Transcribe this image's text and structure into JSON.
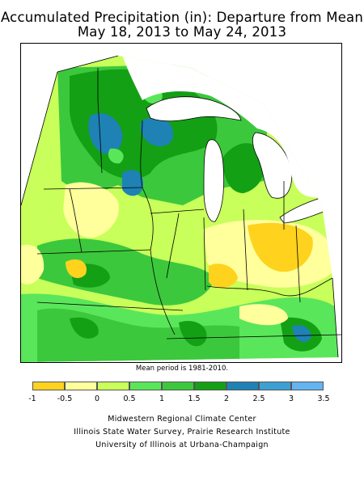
{
  "title": {
    "line1": "Accumulated Precipitation (in): Departure from Mean",
    "line2": "May 18, 2013 to May 24, 2013"
  },
  "note": "Mean period is 1981-2010.",
  "legend": {
    "bins": [
      {
        "label": "-1",
        "color": "#ffd21e"
      },
      {
        "label": "-0.5",
        "color": "#ffff9c"
      },
      {
        "label": "0",
        "color": "#c8ff5a"
      },
      {
        "label": "0.5",
        "color": "#5ae65a"
      },
      {
        "label": "1",
        "color": "#3cc83c"
      },
      {
        "label": "1.5",
        "color": "#14a014"
      },
      {
        "label": "2",
        "color": "#1e82b4"
      },
      {
        "label": "2.5",
        "color": "#3ca0d2"
      },
      {
        "label": "3",
        "color": "#64b4f0"
      }
    ],
    "last_label": "3.5"
  },
  "credits": {
    "line1": "Midwestern Regional Climate Center",
    "line2": "Illinois State Water Survey, Prairie Research Institute",
    "line3": "University of Illinois at Urbana-Champaign"
  },
  "colors": {
    "dry_strong": "#ffd21e",
    "dry": "#ffff9c",
    "near_normal": "#c8ff5a",
    "wet_light": "#5ae65a",
    "wet": "#3cc83c",
    "wet_dark": "#14a014",
    "wet_blue": "#1e82b4",
    "water": "#ffffff",
    "borders": "#000000"
  }
}
